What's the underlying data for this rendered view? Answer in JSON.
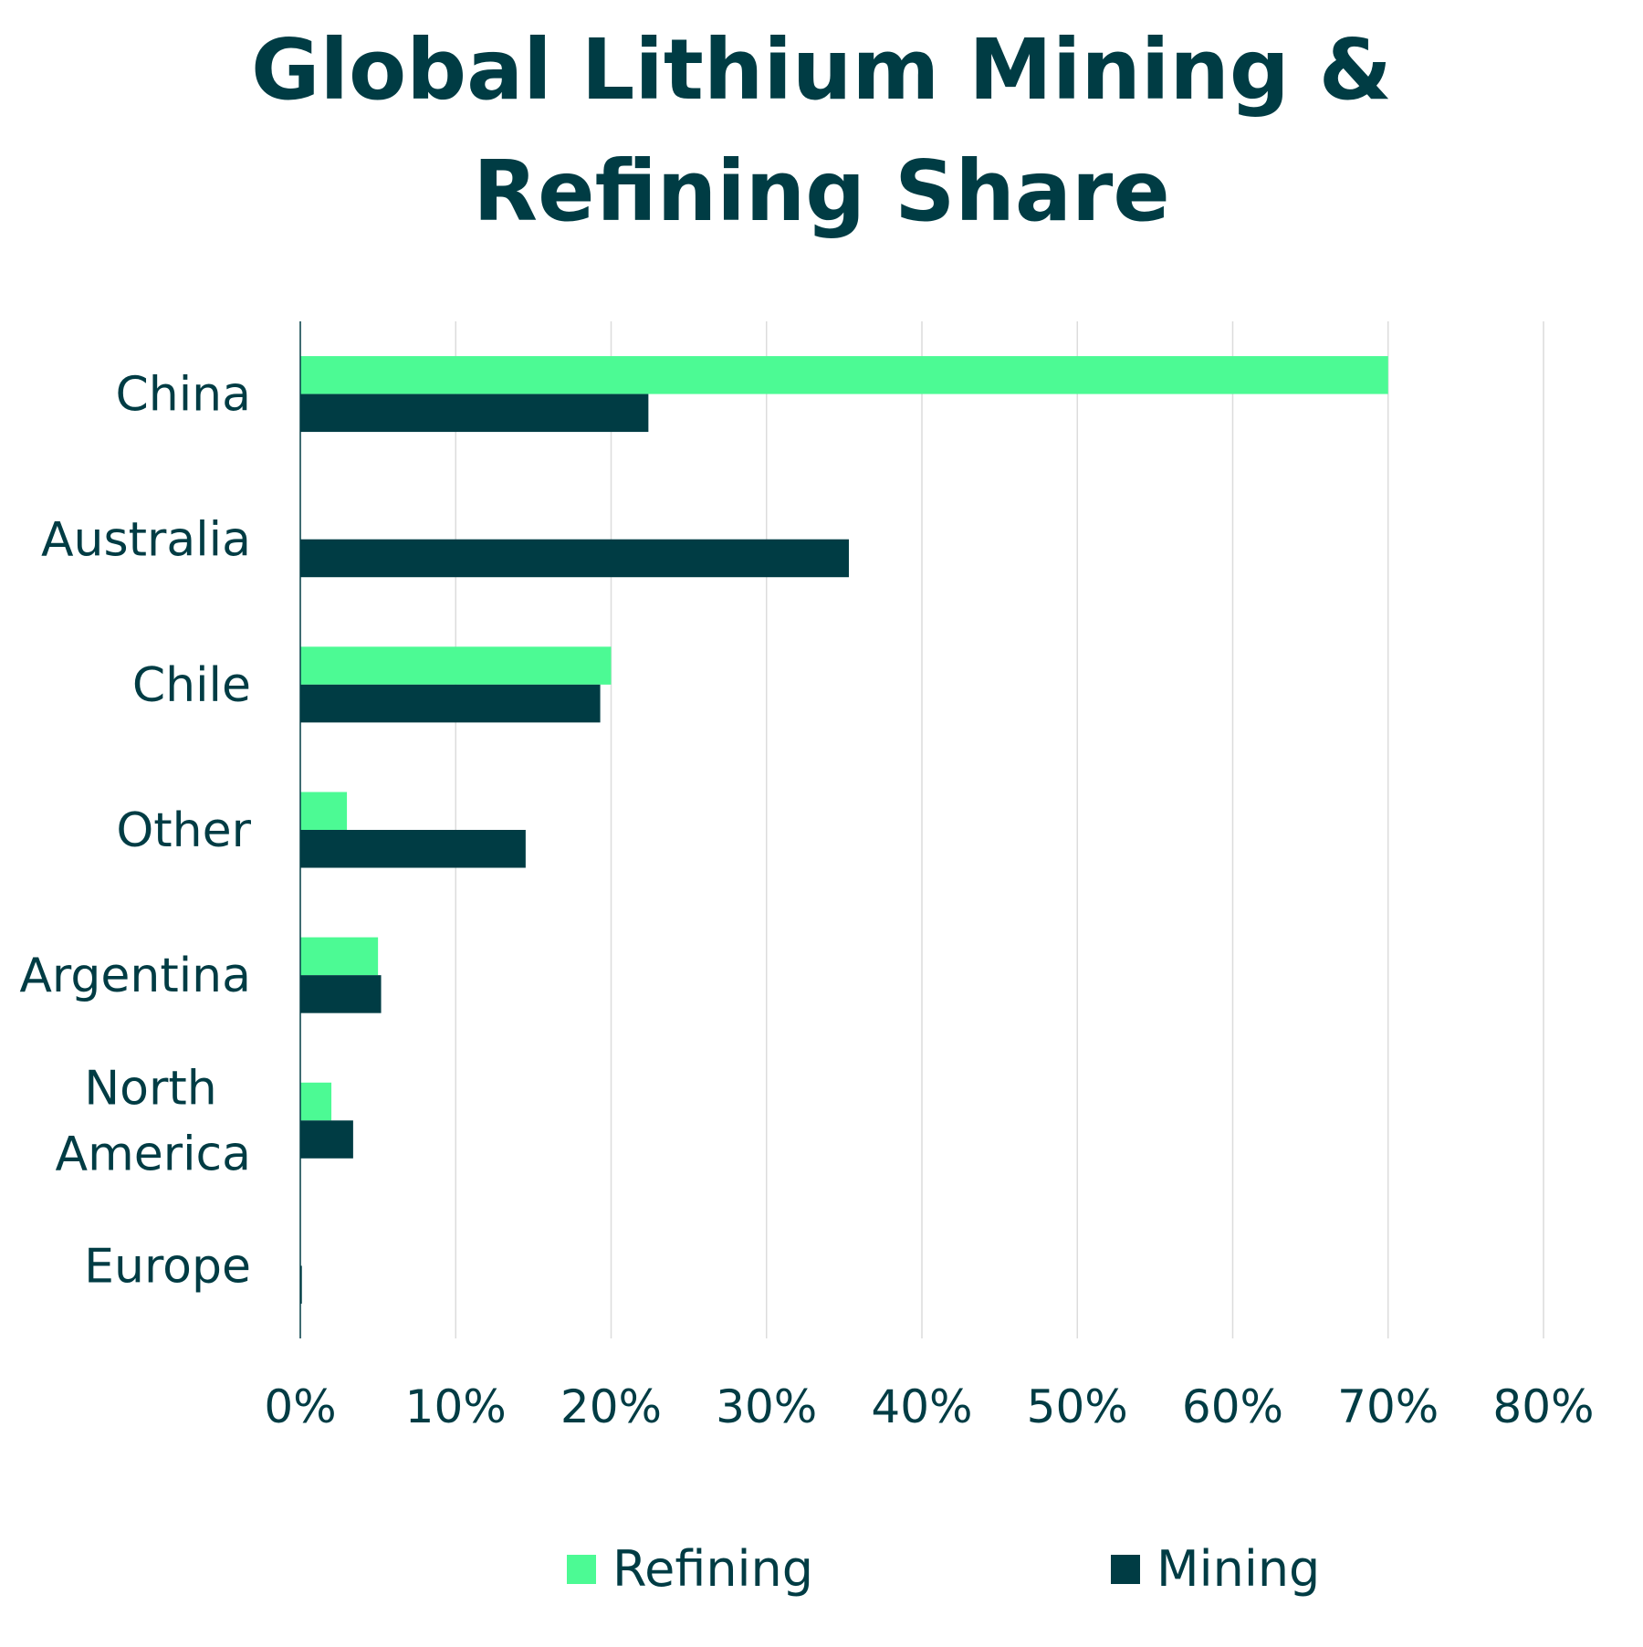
{
  "chart_data": {
    "type": "bar",
    "orientation": "horizontal",
    "title": "Global Lithium Mining & Refining Share",
    "title_lines": [
      "Global Lithium Mining &",
      "Refining Share"
    ],
    "categories": [
      "China",
      "Australia",
      "Chile",
      "Other",
      "Argentina",
      "North America",
      "Europe"
    ],
    "category_lines": [
      [
        "China"
      ],
      [
        "Australia"
      ],
      [
        "Chile"
      ],
      [
        "Other"
      ],
      [
        "Argentina"
      ],
      [
        "North",
        "America"
      ],
      [
        "Europe"
      ]
    ],
    "series": [
      {
        "name": "Refining",
        "color": "#4cfa94",
        "values": [
          70,
          0,
          20,
          3,
          5,
          2,
          0
        ]
      },
      {
        "name": "Mining",
        "color": "#003c44",
        "values": [
          22.4,
          35.3,
          19.3,
          14.5,
          5.2,
          3.4,
          0.1
        ]
      }
    ],
    "xlim": [
      0,
      80
    ],
    "xticks": [
      0,
      10,
      20,
      30,
      40,
      50,
      60,
      70,
      80
    ],
    "xtick_labels": [
      "0%",
      "10%",
      "20%",
      "30%",
      "40%",
      "50%",
      "60%",
      "70%",
      "80%"
    ],
    "xlabel": "",
    "ylabel": "",
    "grid": "vertical",
    "legend_position": "bottom"
  }
}
